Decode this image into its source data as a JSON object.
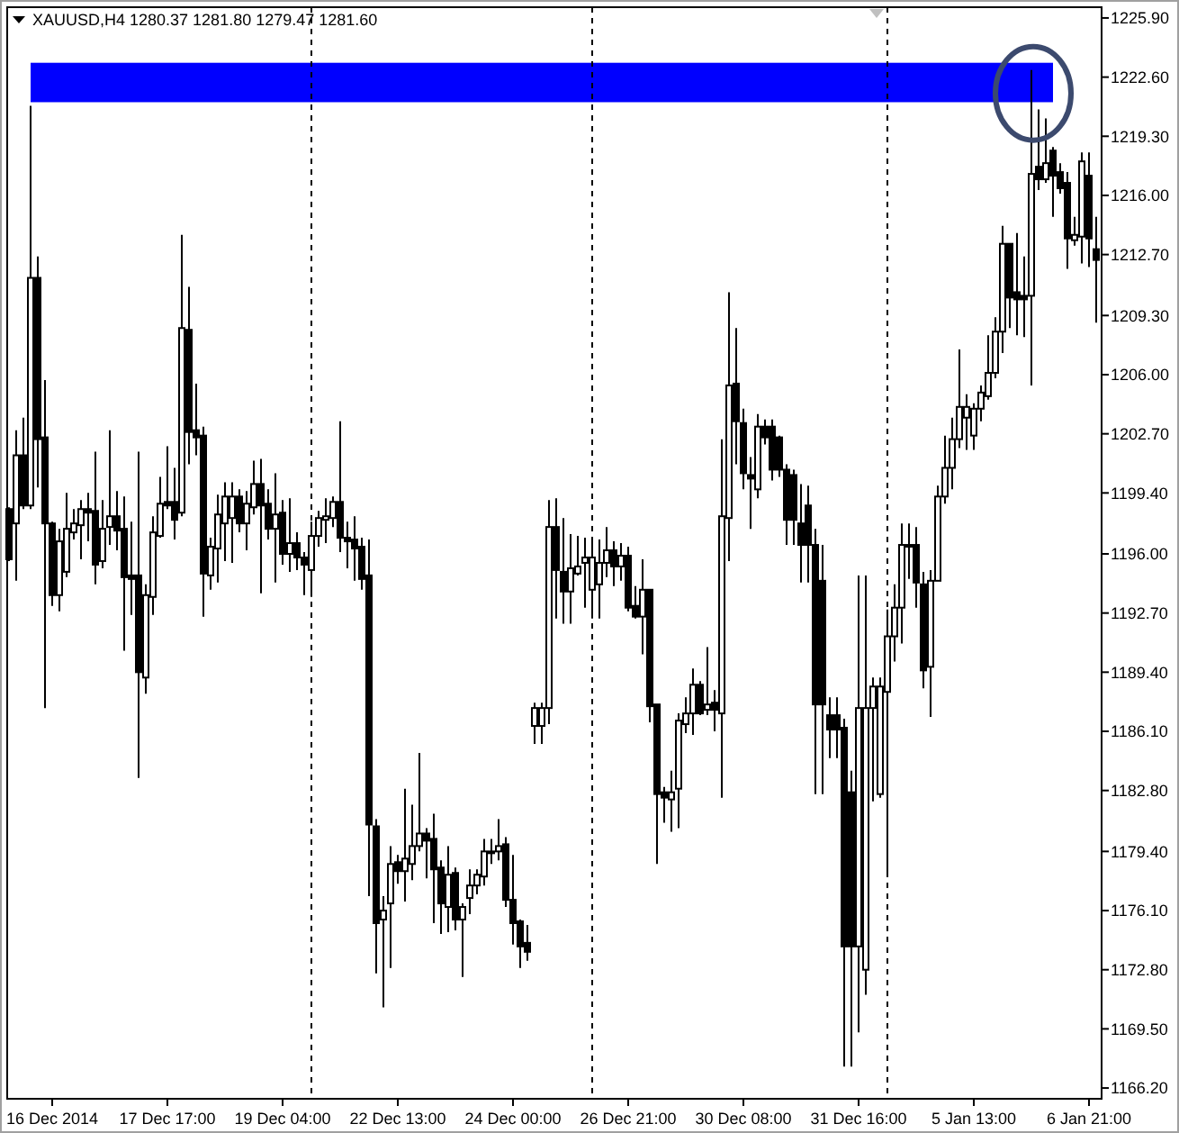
{
  "chart_data": {
    "type": "candlestick",
    "title": "XAUUSD,H4  1280.37 1281.80 1279.47 1281.60",
    "categories": [
      null,
      null,
      null,
      null,
      null,
      null,
      "16 Dec 2014",
      null,
      null,
      null,
      null,
      null,
      null,
      null,
      null,
      null,
      null,
      null,
      null,
      null,
      null,
      null,
      "17 Dec 17:00",
      null,
      null,
      null,
      null,
      null,
      null,
      null,
      null,
      null,
      null,
      null,
      null,
      null,
      null,
      null,
      "19 Dec 04:00",
      null,
      null,
      null,
      null,
      null,
      null,
      null,
      null,
      null,
      null,
      null,
      null,
      null,
      null,
      null,
      "22 Dec 13:00",
      null,
      null,
      null,
      null,
      null,
      null,
      null,
      null,
      null,
      null,
      null,
      null,
      null,
      null,
      null,
      "24 Dec 00:00",
      null,
      null,
      null,
      null,
      null,
      null,
      null,
      null,
      null,
      null,
      null,
      null,
      null,
      null,
      null,
      "26 Dec 21:00",
      null,
      null,
      null,
      null,
      null,
      null,
      null,
      null,
      null,
      null,
      null,
      null,
      null,
      null,
      null,
      "30 Dec 08:00",
      null,
      null,
      null,
      null,
      null,
      null,
      null,
      null,
      null,
      null,
      null,
      null,
      null,
      null,
      null,
      "31 Dec 16:00",
      null,
      null,
      null,
      null,
      null,
      null,
      null,
      null,
      null,
      null,
      null,
      null,
      null,
      null,
      null,
      "5 Jan 13:00",
      null,
      null,
      null,
      null,
      null,
      null,
      null,
      null,
      null,
      null,
      null,
      null,
      null,
      null,
      null,
      "6 Jan 21:00",
      null
    ],
    "ohlc": [
      [
        1198.5,
        1198.6,
        1195.6,
        1195.7
      ],
      [
        1197.7,
        1202.9,
        1194.5,
        1201.5
      ],
      [
        1201.5,
        1203.6,
        1198.5,
        1198.7
      ],
      [
        1198.7,
        1221.0,
        1198.5,
        1211.4
      ],
      [
        1211.4,
        1212.6,
        1199.7,
        1202.4
      ],
      [
        1202.5,
        1205.7,
        1187.4,
        1197.7
      ],
      [
        1197.7,
        1197.8,
        1193.1,
        1193.7
      ],
      [
        1193.7,
        1197.4,
        1192.8,
        1196.7
      ],
      [
        1195.0,
        1199.4,
        1194.7,
        1197.4
      ],
      [
        1197.2,
        1198.5,
        1196.8,
        1197.7
      ],
      [
        1197.6,
        1199.0,
        1195.7,
        1198.5
      ],
      [
        1198.5,
        1199.4,
        1196.7,
        1198.3
      ],
      [
        1198.4,
        1201.7,
        1194.3,
        1195.4
      ],
      [
        1195.6,
        1199.0,
        1195.2,
        1197.4
      ],
      [
        1197.5,
        1202.9,
        1196.5,
        1198.1
      ],
      [
        1198.1,
        1199.5,
        1196.2,
        1197.3
      ],
      [
        1197.4,
        1199.2,
        1190.6,
        1194.7
      ],
      [
        1194.8,
        1197.8,
        1192.6,
        1194.6
      ],
      [
        1194.8,
        1201.7,
        1183.5,
        1189.4
      ],
      [
        1189.1,
        1194.3,
        1188.2,
        1193.7
      ],
      [
        1193.6,
        1198.1,
        1192.6,
        1197.2
      ],
      [
        1197.0,
        1200.3,
        1196.9,
        1198.8
      ],
      [
        1198.9,
        1202.0,
        1198.5,
        1198.7
      ],
      [
        1198.9,
        1200.8,
        1196.8,
        1197.9
      ],
      [
        1198.3,
        1213.8,
        1198.1,
        1208.6
      ],
      [
        1208.5,
        1210.9,
        1201.0,
        1202.8
      ],
      [
        1202.9,
        1205.5,
        1201.5,
        1202.5
      ],
      [
        1202.6,
        1203.1,
        1192.5,
        1194.9
      ],
      [
        1194.8,
        1196.9,
        1194.0,
        1196.4
      ],
      [
        1196.3,
        1199.3,
        1194.4,
        1198.2
      ],
      [
        1197.7,
        1200.0,
        1195.6,
        1199.2
      ],
      [
        1198.0,
        1200.0,
        1195.5,
        1199.2
      ],
      [
        1199.2,
        1199.6,
        1197.2,
        1197.7
      ],
      [
        1197.7,
        1199.5,
        1196.2,
        1198.8
      ],
      [
        1198.6,
        1201.2,
        1198.2,
        1199.9
      ],
      [
        1199.9,
        1201.3,
        1193.8,
        1198.7
      ],
      [
        1198.8,
        1199.6,
        1196.8,
        1197.4
      ],
      [
        1197.4,
        1200.5,
        1194.4,
        1198.2
      ],
      [
        1198.3,
        1199.0,
        1195.4,
        1196.0
      ],
      [
        1196.0,
        1199.1,
        1195.0,
        1196.6
      ],
      [
        1196.6,
        1197.2,
        1195.1,
        1195.8
      ],
      [
        1195.8,
        1196.1,
        1193.7,
        1195.4
      ],
      [
        1195.1,
        1197.8,
        1193.6,
        1197.0
      ],
      [
        1197.0,
        1198.4,
        1196.4,
        1198.0
      ],
      [
        1197.9,
        1199.1,
        1196.6,
        1198.1
      ],
      [
        1198.0,
        1199.2,
        1197.5,
        1198.9
      ],
      [
        1198.9,
        1203.4,
        1196.1,
        1196.9
      ],
      [
        1196.9,
        1197.8,
        1195.2,
        1196.7
      ],
      [
        1196.8,
        1198.1,
        1194.5,
        1196.3
      ],
      [
        1196.4,
        1196.9,
        1194.0,
        1194.6
      ],
      [
        1194.8,
        1196.8,
        1176.9,
        1180.9
      ],
      [
        1180.8,
        1181.2,
        1172.6,
        1175.4
      ],
      [
        1175.6,
        1176.9,
        1170.7,
        1176.1
      ],
      [
        1176.5,
        1179.7,
        1172.9,
        1178.7
      ],
      [
        1178.8,
        1179.2,
        1177.6,
        1178.3
      ],
      [
        1178.3,
        1182.9,
        1176.6,
        1179.0
      ],
      [
        1178.7,
        1182.0,
        1177.8,
        1179.7
      ],
      [
        1179.7,
        1184.9,
        1179.4,
        1180.4
      ],
      [
        1180.4,
        1180.7,
        1177.9,
        1180.0
      ],
      [
        1180.1,
        1181.5,
        1175.4,
        1178.4
      ],
      [
        1178.5,
        1178.9,
        1174.8,
        1176.5
      ],
      [
        1176.3,
        1179.7,
        1174.9,
        1178.1
      ],
      [
        1178.2,
        1178.5,
        1175.0,
        1175.6
      ],
      [
        1175.6,
        1176.5,
        1172.4,
        1176.3
      ],
      [
        1176.8,
        1178.4,
        1175.9,
        1177.5
      ],
      [
        1177.5,
        1178.4,
        1177.0,
        1178.1
      ],
      [
        1178.0,
        1180.1,
        1177.5,
        1179.4
      ],
      [
        1179.4,
        1180.1,
        1178.7,
        1179.3
      ],
      [
        1179.4,
        1181.2,
        1178.9,
        1179.7
      ],
      [
        1179.8,
        1180.2,
        1176.3,
        1176.7
      ],
      [
        1176.7,
        1179.2,
        1174.2,
        1175.4
      ],
      [
        1175.5,
        1175.6,
        1172.9,
        1174.1
      ],
      [
        1174.3,
        1175.3,
        1173.3,
        1173.8
      ],
      [
        1186.4,
        1187.7,
        1185.4,
        1187.4
      ],
      [
        1186.4,
        1187.7,
        1185.4,
        1187.4
      ],
      [
        1187.4,
        1199.0,
        1186.5,
        1197.5
      ],
      [
        1197.5,
        1199.1,
        1192.4,
        1195.1
      ],
      [
        1195.0,
        1198.0,
        1192.1,
        1193.9
      ],
      [
        1193.9,
        1197.1,
        1192.1,
        1195.2
      ],
      [
        1194.9,
        1197.0,
        1194.8,
        1195.3
      ],
      [
        1195.5,
        1196.9,
        1193.0,
        1195.8
      ],
      [
        1194.0,
        1196.9,
        1192.4,
        1195.8
      ],
      [
        1194.3,
        1196.8,
        1192.4,
        1195.5
      ],
      [
        1195.5,
        1197.5,
        1194.7,
        1196.2
      ],
      [
        1196.2,
        1196.7,
        1194.2,
        1195.3
      ],
      [
        1195.3,
        1196.6,
        1194.5,
        1195.9
      ],
      [
        1195.9,
        1196.4,
        1192.8,
        1193.0
      ],
      [
        1193.1,
        1194.2,
        1192.4,
        1192.5
      ],
      [
        1192.5,
        1195.7,
        1190.4,
        1194.0
      ],
      [
        1194.0,
        1194.0,
        1186.6,
        1187.5
      ],
      [
        1187.6,
        1187.6,
        1178.7,
        1182.6
      ],
      [
        1182.7,
        1183.0,
        1181.0,
        1182.4
      ],
      [
        1182.3,
        1183.9,
        1180.5,
        1182.7
      ],
      [
        1182.9,
        1187.1,
        1180.7,
        1186.7
      ],
      [
        1186.5,
        1188.0,
        1186.0,
        1187.1
      ],
      [
        1187.1,
        1189.6,
        1185.9,
        1188.7
      ],
      [
        1188.7,
        1188.9,
        1187.0,
        1187.1
      ],
      [
        1187.3,
        1190.8,
        1187.0,
        1187.6
      ],
      [
        1187.7,
        1188.4,
        1186.1,
        1187.3
      ],
      [
        1187.1,
        1202.4,
        1182.4,
        1198.1
      ],
      [
        1198.0,
        1210.6,
        1195.6,
        1205.4
      ],
      [
        1205.5,
        1208.6,
        1201.0,
        1203.4
      ],
      [
        1203.3,
        1204.1,
        1199.6,
        1200.5
      ],
      [
        1200.4,
        1201.4,
        1197.4,
        1200.2
      ],
      [
        1199.6,
        1203.8,
        1199.1,
        1203.1
      ],
      [
        1203.1,
        1203.5,
        1202.1,
        1202.5
      ],
      [
        1203.1,
        1203.5,
        1200.1,
        1200.7
      ],
      [
        1202.5,
        1202.6,
        1200.3,
        1200.7
      ],
      [
        1200.7,
        1201.0,
        1196.5,
        1197.9
      ],
      [
        1200.4,
        1200.7,
        1196.5,
        1197.9
      ],
      [
        1197.7,
        1199.9,
        1194.4,
        1196.5
      ],
      [
        1198.7,
        1199.8,
        1194.4,
        1196.5
      ],
      [
        1196.5,
        1197.4,
        1182.6,
        1187.6
      ],
      [
        1194.5,
        1196.5,
        1182.6,
        1187.6
      ],
      [
        1187.0,
        1188.0,
        1184.6,
        1186.2
      ],
      [
        1187.0,
        1188.0,
        1184.6,
        1186.2
      ],
      [
        1186.3,
        1186.8,
        1167.4,
        1174.1
      ],
      [
        1182.7,
        1183.9,
        1167.4,
        1174.1
      ],
      [
        1174.1,
        1194.8,
        1169.3,
        1187.4
      ],
      [
        1172.8,
        1194.8,
        1171.4,
        1187.4
      ],
      [
        1187.4,
        1189.1,
        1182.2,
        1188.6
      ],
      [
        1182.6,
        1189.1,
        1182.4,
        1188.6
      ],
      [
        1188.3,
        1192.9,
        1178.0,
        1191.4
      ],
      [
        1191.4,
        1194.3,
        1190.0,
        1193.0
      ],
      [
        1193.0,
        1197.7,
        1191.0,
        1196.5
      ],
      [
        1196.4,
        1197.7,
        1194.6,
        1196.5
      ],
      [
        1196.5,
        1197.5,
        1193.0,
        1194.4
      ],
      [
        1194.3,
        1195.0,
        1188.5,
        1189.5
      ],
      [
        1189.7,
        1195.1,
        1186.9,
        1194.5
      ],
      [
        1194.5,
        1199.8,
        1194.5,
        1199.2
      ],
      [
        1199.2,
        1202.6,
        1198.8,
        1200.8
      ],
      [
        1200.8,
        1203.6,
        1199.6,
        1202.4
      ],
      [
        1202.4,
        1207.4,
        1201.9,
        1204.2
      ],
      [
        1203.6,
        1204.9,
        1201.8,
        1204.2
      ],
      [
        1202.6,
        1204.4,
        1201.8,
        1204.1
      ],
      [
        1204.1,
        1205.4,
        1203.4,
        1205.0
      ],
      [
        1204.8,
        1208.2,
        1204.6,
        1206.1
      ],
      [
        1206.1,
        1209.2,
        1205.8,
        1208.4
      ],
      [
        1208.4,
        1214.3,
        1207.2,
        1213.3
      ],
      [
        1213.3,
        1213.3,
        1208.6,
        1210.3
      ],
      [
        1210.6,
        1213.9,
        1208.2,
        1210.2
      ],
      [
        1210.4,
        1212.6,
        1208.1,
        1210.2
      ],
      [
        1210.4,
        1223.0,
        1205.4,
        1217.2
      ],
      [
        1217.6,
        1220.8,
        1216.3,
        1216.9
      ],
      [
        1216.9,
        1220.3,
        1216.7,
        1217.8
      ],
      [
        1218.5,
        1218.7,
        1214.8,
        1217.1
      ],
      [
        1217.3,
        1217.8,
        1216.1,
        1216.4
      ],
      [
        1216.7,
        1217.3,
        1211.9,
        1213.6
      ],
      [
        1213.5,
        1214.8,
        1213.2,
        1213.8
      ],
      [
        1213.7,
        1218.4,
        1212.2,
        1217.9
      ],
      [
        1217.1,
        1218.4,
        1212.0,
        1213.6
      ],
      [
        1213.0,
        1214.8,
        1208.9,
        1212.4
      ]
    ],
    "ylim": [
      1165.6,
      1226.5
    ],
    "yticks": [
      {
        "value": 1225.9,
        "label": "1225.90"
      },
      {
        "value": 1222.6,
        "label": "1222.60"
      },
      {
        "value": 1219.3,
        "label": "1219.30"
      },
      {
        "value": 1216.0,
        "label": "1216.00"
      },
      {
        "value": 1212.7,
        "label": "1212.70"
      },
      {
        "value": 1209.3,
        "label": "1209.30"
      },
      {
        "value": 1206.0,
        "label": "1206.00"
      },
      {
        "value": 1202.7,
        "label": "1202.70"
      },
      {
        "value": 1199.4,
        "label": "1199.40"
      },
      {
        "value": 1196.0,
        "label": "1196.00"
      },
      {
        "value": 1192.7,
        "label": "1192.70"
      },
      {
        "value": 1189.4,
        "label": "1189.40"
      },
      {
        "value": 1186.1,
        "label": "1186.10"
      },
      {
        "value": 1182.8,
        "label": "1182.80"
      },
      {
        "value": 1179.4,
        "label": "1179.40"
      },
      {
        "value": 1176.1,
        "label": "1176.10"
      },
      {
        "value": 1172.8,
        "label": "1172.80"
      },
      {
        "value": 1169.5,
        "label": "1169.50"
      },
      {
        "value": 1166.2,
        "label": "1166.20"
      }
    ],
    "bands": [
      {
        "axis": "y",
        "from": 1221.2,
        "to": 1223.4,
        "color": "#0000ff"
      }
    ]
  }
}
